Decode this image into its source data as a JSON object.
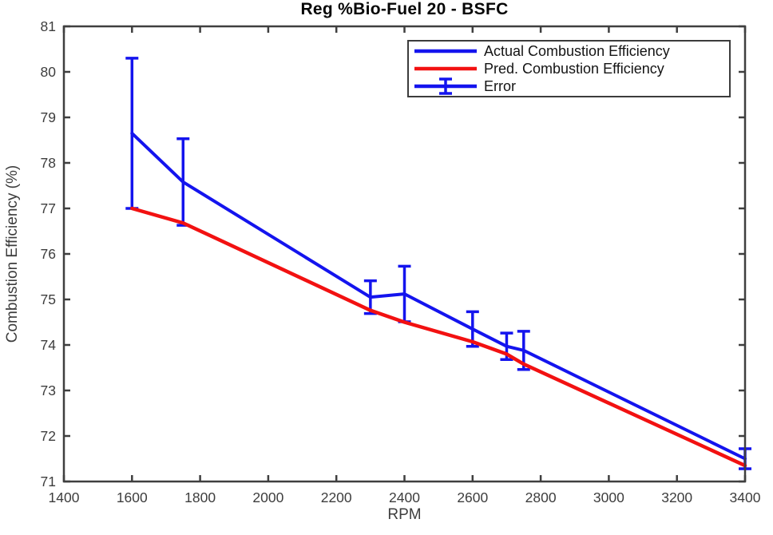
{
  "figure": {
    "background": "#ffffff"
  },
  "chart_data": {
    "type": "line",
    "title": "Reg %Bio-Fuel 20 - BSFC",
    "xlabel": "RPM",
    "ylabel": "Combustion Efficiency (%)",
    "xlim": [
      1400,
      3400
    ],
    "ylim": [
      71,
      81
    ],
    "xticks": [
      1400,
      1600,
      1800,
      2000,
      2200,
      2400,
      2600,
      2800,
      3000,
      3200,
      3400
    ],
    "yticks": [
      71,
      72,
      73,
      74,
      75,
      76,
      77,
      78,
      79,
      80,
      81
    ],
    "grid": false,
    "box": true,
    "legend_position": "top-right",
    "x": [
      1600,
      1750,
      2300,
      2400,
      2600,
      2700,
      2750,
      3400
    ],
    "series": [
      {
        "name": "Actual Combustion Efficiency",
        "color": "#1414ee",
        "values": [
          78.65,
          77.58,
          75.05,
          75.12,
          74.35,
          73.97,
          73.88,
          71.5
        ],
        "error": [
          1.65,
          0.95,
          0.36,
          0.61,
          0.38,
          0.29,
          0.42,
          0.22
        ],
        "line_width": 4
      },
      {
        "name": "Pred. Combustion Efficiency",
        "color": "#f21111",
        "values": [
          77.0,
          76.68,
          74.76,
          74.5,
          74.07,
          73.8,
          73.58,
          71.35
        ],
        "line_width": 4.5
      }
    ],
    "legend": [
      {
        "label": "Actual Combustion Efficiency",
        "color": "#1414ee",
        "glyph": "line"
      },
      {
        "label": "Pred. Combustion Efficiency",
        "color": "#f21111",
        "glyph": "line"
      },
      {
        "label": "Error",
        "color": "#1414ee",
        "glyph": "errorbar"
      }
    ],
    "axis_color": "#3f3f3f",
    "tick_text_color": "#3d3d3d",
    "title_color": "#060606"
  }
}
